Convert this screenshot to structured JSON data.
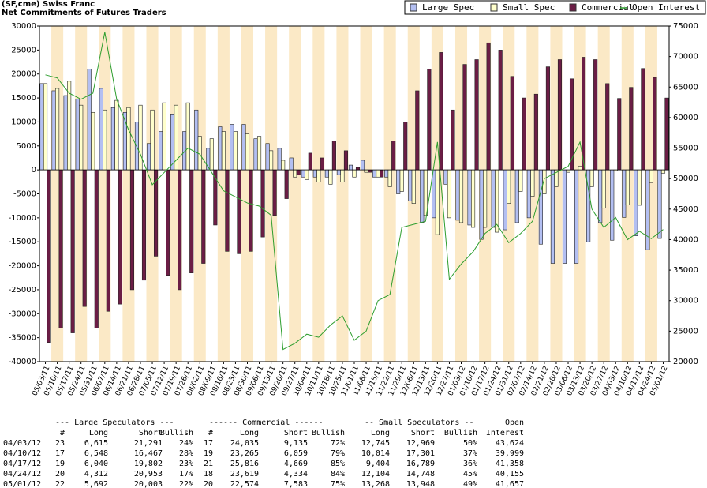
{
  "chart_data": {
    "type": "bar",
    "title": "(SF,cme) Swiss Franc",
    "subtitle": "Net Commitments of Futures Traders",
    "categories": [
      "05/03/11",
      "05/10/11",
      "05/17/11",
      "05/24/11",
      "05/31/11",
      "06/07/11",
      "06/14/11",
      "06/21/11",
      "06/28/11",
      "07/05/11",
      "07/12/11",
      "07/19/11",
      "07/26/11",
      "08/02/11",
      "08/09/11",
      "08/16/11",
      "08/23/11",
      "08/30/11",
      "09/06/11",
      "09/13/11",
      "09/20/11",
      "09/27/11",
      "10/04/11",
      "10/11/11",
      "10/18/11",
      "10/25/11",
      "11/01/11",
      "11/08/11",
      "11/15/11",
      "11/22/11",
      "11/29/11",
      "12/06/11",
      "12/13/11",
      "12/20/11",
      "12/27/11",
      "01/03/12",
      "01/10/12",
      "01/17/12",
      "01/24/12",
      "01/31/12",
      "02/07/12",
      "02/14/12",
      "02/21/12",
      "02/28/12",
      "03/06/12",
      "03/13/12",
      "03/20/12",
      "03/27/12",
      "04/03/12",
      "04/10/12",
      "04/17/12",
      "04/24/12",
      "05/01/12"
    ],
    "series": [
      {
        "name": "Large Spec",
        "color": "#b3bff2",
        "values": [
          18000,
          16500,
          15500,
          14800,
          21000,
          17000,
          13000,
          12000,
          10000,
          5500,
          8000,
          11500,
          8000,
          12500,
          4500,
          9000,
          9500,
          9500,
          6500,
          5500,
          4500,
          2500,
          -1500,
          -1500,
          -1500,
          -1000,
          1000,
          2000,
          -1500,
          -1500,
          -5000,
          -6500,
          -11000,
          -10000,
          -3000,
          -10500,
          -11500,
          -14500,
          -12000,
          -12500,
          -11000,
          -10000,
          -15500,
          -19500,
          -19500,
          -19500,
          -15000,
          -11000,
          -14676,
          -9919,
          -13762,
          -16641,
          -14311
        ]
      },
      {
        "name": "Small Spec",
        "color": "#ffffcc",
        "values": [
          18000,
          17000,
          18500,
          13500,
          12000,
          12500,
          14500,
          13000,
          13500,
          12500,
          14000,
          13500,
          14000,
          7000,
          6500,
          8000,
          8000,
          7500,
          7000,
          4000,
          2000,
          -1500,
          -2000,
          -2500,
          -3000,
          -2500,
          -1500,
          -500,
          -1500,
          -3500,
          -4500,
          -7000,
          -9500,
          -13500,
          -10000,
          -11000,
          -12000,
          -12000,
          -13000,
          -7000,
          -4500,
          -5500,
          -5000,
          -3500,
          -500,
          800,
          -3500,
          -8000,
          -224,
          -7287,
          -7385,
          -2644,
          -680
        ]
      },
      {
        "name": "Commercial",
        "color": "#6b1d45",
        "values": [
          -36000,
          -33000,
          -34000,
          -28500,
          -33000,
          -29500,
          -28000,
          -25000,
          -23000,
          -18000,
          -22000,
          -25000,
          -21500,
          -19500,
          -11500,
          -17000,
          -17500,
          -17000,
          -14000,
          -9500,
          -6000,
          -1000,
          3500,
          2500,
          6000,
          4000,
          500,
          -500,
          -1500,
          6000,
          10000,
          16500,
          21000,
          24500,
          12500,
          22000,
          23000,
          26500,
          25000,
          19500,
          15000,
          15800,
          21500,
          23000,
          19000,
          23500,
          23000,
          18000,
          14900,
          17206,
          21147,
          19285,
          14991
        ]
      },
      {
        "name": "Open Interest",
        "color": "#2e9e2e",
        "axis": "y2",
        "values": [
          67000,
          66500,
          64000,
          63000,
          64000,
          74000,
          63000,
          58000,
          54000,
          49000,
          51000,
          53000,
          55000,
          54000,
          51000,
          48000,
          47000,
          46000,
          45500,
          44000,
          22000,
          23000,
          24500,
          24000,
          26000,
          27500,
          23500,
          25000,
          30000,
          31000,
          42000,
          42500,
          43000,
          56000,
          33500,
          36000,
          38000,
          41000,
          42500,
          39500,
          41000,
          43000,
          50000,
          51000,
          52000,
          56000,
          45000,
          42000,
          43624,
          39999,
          41358,
          40155,
          41657
        ]
      }
    ],
    "ylim": [
      -40000,
      30000
    ],
    "yticks": [
      -40000,
      -35000,
      -30000,
      -25000,
      -20000,
      -15000,
      -10000,
      -5000,
      0,
      5000,
      10000,
      15000,
      20000,
      25000,
      30000
    ],
    "y2lim": [
      20000,
      75000
    ],
    "y2ticks": [
      20000,
      25000,
      30000,
      35000,
      40000,
      45000,
      50000,
      55000,
      60000,
      65000,
      70000,
      75000
    ],
    "legend": "top-right"
  },
  "table": {
    "header1": [
      "--- Large Speculators ---",
      "------ Commercial ------",
      "-- Small Speculators --",
      "Open"
    ],
    "header2": [
      "#",
      "Long",
      "Short",
      "Bullish",
      "#",
      "Long",
      "Short",
      "Bullish",
      "Long",
      "Short",
      "Bullish",
      "Interest"
    ],
    "rows": [
      [
        "04/03/12",
        "23",
        "6,615",
        "21,291",
        "24%",
        "17",
        "24,035",
        "9,135",
        "72%",
        "12,745",
        "12,969",
        "50%",
        "43,624"
      ],
      [
        "04/10/12",
        "17",
        "6,548",
        "16,467",
        "28%",
        "19",
        "23,265",
        "6,059",
        "79%",
        "10,014",
        "17,301",
        "37%",
        "39,999"
      ],
      [
        "04/17/12",
        "19",
        "6,040",
        "19,802",
        "23%",
        "21",
        "25,816",
        "4,669",
        "85%",
        "9,404",
        "16,789",
        "36%",
        "41,358"
      ],
      [
        "04/24/12",
        "20",
        "4,312",
        "20,953",
        "17%",
        "18",
        "23,619",
        "4,334",
        "84%",
        "12,104",
        "14,748",
        "45%",
        "40,155"
      ],
      [
        "05/01/12",
        "22",
        "5,692",
        "20,003",
        "22%",
        "20",
        "22,574",
        "7,583",
        "75%",
        "13,268",
        "13,948",
        "49%",
        "41,657"
      ]
    ]
  }
}
